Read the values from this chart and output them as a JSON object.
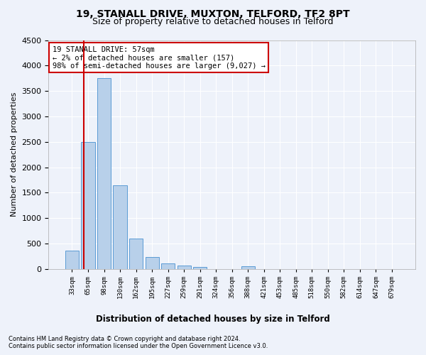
{
  "title": "19, STANALL DRIVE, MUXTON, TELFORD, TF2 8PT",
  "subtitle": "Size of property relative to detached houses in Telford",
  "xlabel": "Distribution of detached houses by size in Telford",
  "ylabel": "Number of detached properties",
  "footnote1": "Contains HM Land Registry data © Crown copyright and database right 2024.",
  "footnote2": "Contains public sector information licensed under the Open Government Licence v3.0.",
  "categories": [
    "33sqm",
    "65sqm",
    "98sqm",
    "130sqm",
    "162sqm",
    "195sqm",
    "227sqm",
    "259sqm",
    "291sqm",
    "324sqm",
    "356sqm",
    "388sqm",
    "421sqm",
    "453sqm",
    "485sqm",
    "518sqm",
    "550sqm",
    "582sqm",
    "614sqm",
    "647sqm",
    "679sqm"
  ],
  "bar_values": [
    360,
    2500,
    3750,
    1650,
    590,
    230,
    110,
    65,
    45,
    0,
    0,
    50,
    0,
    0,
    0,
    0,
    0,
    0,
    0,
    0,
    0
  ],
  "bar_color": "#b8d0ea",
  "bar_edge_color": "#5b9bd5",
  "annotation_text": "19 STANALL DRIVE: 57sqm\n← 2% of detached houses are smaller (157)\n98% of semi-detached houses are larger (9,027) →",
  "annotation_box_color": "#ffffff",
  "annotation_box_edge_color": "#cc0000",
  "ylim": [
    0,
    4500
  ],
  "yticks": [
    0,
    500,
    1000,
    1500,
    2000,
    2500,
    3000,
    3500,
    4000,
    4500
  ],
  "bg_color": "#eef2fa",
  "axes_bg_color": "#eef2fa",
  "grid_color": "#ffffff",
  "title_fontsize": 10,
  "subtitle_fontsize": 9,
  "redline_color": "#cc0000"
}
